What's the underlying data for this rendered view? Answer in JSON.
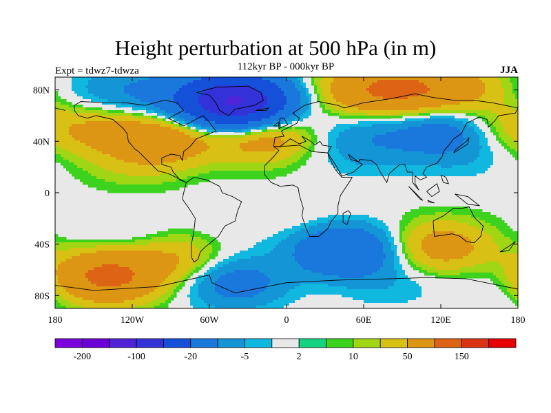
{
  "title": "Height perturbation at 500 hPa (in m)",
  "subtitle": "112kyr BP - 000kyr BP",
  "left_label": "Expt = tdwz7-tdwza",
  "right_label": "JJA",
  "map": {
    "x_ticks": [
      {
        "lon": -180,
        "label": "180"
      },
      {
        "lon": -120,
        "label": "120W"
      },
      {
        "lon": -60,
        "label": "60W"
      },
      {
        "lon": 0,
        "label": "0"
      },
      {
        "lon": 60,
        "label": "60E"
      },
      {
        "lon": 120,
        "label": "120E"
      },
      {
        "lon": 180,
        "label": "180"
      }
    ],
    "y_ticks": [
      {
        "lat": 80,
        "label": "80N"
      },
      {
        "lat": 40,
        "label": "40N"
      },
      {
        "lat": 0,
        "label": "0"
      },
      {
        "lat": -40,
        "label": "40S"
      },
      {
        "lat": -80,
        "label": "80S"
      }
    ],
    "lon_range": [
      -180,
      180
    ],
    "lat_range": [
      -90,
      90
    ],
    "background_color": "#e8e8e8",
    "anomalies": [
      {
        "lon": -45,
        "lat": 72,
        "value": -60
      },
      {
        "lon": -38,
        "lat": 70,
        "value": -100
      },
      {
        "lon": -110,
        "lat": 78,
        "value": -20
      },
      {
        "lon": -160,
        "lat": 80,
        "value": -8
      },
      {
        "lon": 60,
        "lat": 80,
        "value": 30
      },
      {
        "lon": 95,
        "lat": 80,
        "value": 40
      },
      {
        "lon": 140,
        "lat": 82,
        "value": 20
      },
      {
        "lon": -95,
        "lat": 42,
        "value": 35
      },
      {
        "lon": -145,
        "lat": 48,
        "value": 18
      },
      {
        "lon": -20,
        "lat": 45,
        "value": 35
      },
      {
        "lon": 60,
        "lat": 45,
        "value": -15
      },
      {
        "lon": 120,
        "lat": 47,
        "value": -30
      },
      {
        "lon": 170,
        "lat": 52,
        "value": 12
      },
      {
        "lon": -120,
        "lat": 22,
        "value": 8
      },
      {
        "lon": 60,
        "lat": 25,
        "value": -6
      },
      {
        "lon": 140,
        "lat": 25,
        "value": -6
      },
      {
        "lon": -130,
        "lat": -35,
        "value": -8
      },
      {
        "lon": -35,
        "lat": -25,
        "value": -5
      },
      {
        "lon": -140,
        "lat": -65,
        "value": 60
      },
      {
        "lon": -85,
        "lat": -52,
        "value": 20
      },
      {
        "lon": 45,
        "lat": -45,
        "value": -50
      },
      {
        "lon": 120,
        "lat": -42,
        "value": 30
      },
      {
        "lon": -40,
        "lat": -70,
        "value": -30
      },
      {
        "lon": 80,
        "lat": -72,
        "value": -8
      },
      {
        "lon": 160,
        "lat": -75,
        "value": -6
      },
      {
        "lon": 0,
        "lat": -20,
        "value": 5
      }
    ]
  },
  "colorbar": {
    "colors": [
      "#7a00dc",
      "#6a00d6",
      "#5022d8",
      "#3232d8",
      "#1451d8",
      "#1a78dc",
      "#1496d6",
      "#10b8e0",
      "#e8e8e8",
      "#14d484",
      "#3cd21e",
      "#a0d614",
      "#d8c014",
      "#dc9614",
      "#dc6414",
      "#dc3214",
      "#e60000"
    ],
    "labels": [
      {
        "boundary": 1,
        "label": "-200"
      },
      {
        "boundary": 3,
        "label": "-100"
      },
      {
        "boundary": 5,
        "label": "-20"
      },
      {
        "boundary": 7,
        "label": "-5"
      },
      {
        "boundary": 9,
        "label": "2"
      },
      {
        "boundary": 11,
        "label": "10"
      },
      {
        "boundary": 13,
        "label": "50"
      },
      {
        "boundary": 15,
        "label": "150"
      }
    ],
    "levels": [
      -250,
      -200,
      -150,
      -100,
      -50,
      -20,
      -10,
      -5,
      -2,
      2,
      5,
      10,
      20,
      50,
      100,
      150,
      200
    ]
  }
}
